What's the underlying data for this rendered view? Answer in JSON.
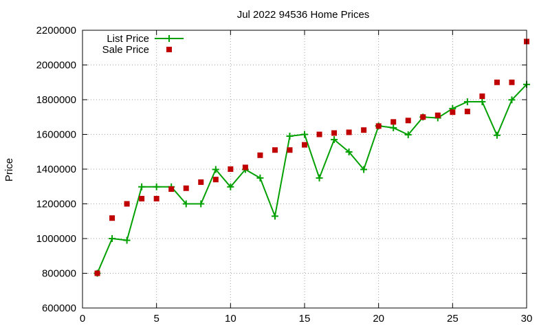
{
  "chart_data": {
    "type": "line",
    "title": "Jul 2022 94536 Home Prices",
    "xlabel": "",
    "ylabel": "Price",
    "xlim": [
      0,
      30
    ],
    "ylim": [
      600000,
      2200000
    ],
    "xticks": [
      0,
      5,
      10,
      15,
      20,
      25,
      30
    ],
    "yticks": [
      600000,
      800000,
      1000000,
      1200000,
      1400000,
      1600000,
      1800000,
      2000000,
      2200000
    ],
    "grid": true,
    "legend_position": "top-left",
    "series": [
      {
        "name": "List Price",
        "style": "lines+crosses",
        "color": "#00a000",
        "x": [
          1,
          2,
          3,
          4,
          5,
          6,
          7,
          8,
          9,
          10,
          11,
          12,
          13,
          14,
          15,
          16,
          17,
          18,
          19,
          20,
          21,
          22,
          23,
          24,
          25,
          26,
          27,
          28,
          29,
          30
        ],
        "y": [
          800000,
          1000000,
          990000,
          1298000,
          1298000,
          1298000,
          1200000,
          1200000,
          1398000,
          1298000,
          1398000,
          1349000,
          1129000,
          1590000,
          1600000,
          1349000,
          1570000,
          1499000,
          1398000,
          1649000,
          1638000,
          1598000,
          1700000,
          1695000,
          1749000,
          1788000,
          1788000,
          1595000,
          1799000,
          1888000
        ]
      },
      {
        "name": "Sale Price",
        "style": "squares",
        "color": "#c00000",
        "x": [
          1,
          2,
          3,
          4,
          5,
          6,
          7,
          8,
          9,
          10,
          11,
          12,
          13,
          14,
          15,
          16,
          17,
          18,
          19,
          20,
          21,
          22,
          23,
          24,
          25,
          26,
          27,
          28,
          29,
          30
        ],
        "y": [
          800000,
          1118000,
          1200000,
          1230000,
          1230000,
          1285000,
          1290000,
          1325000,
          1340000,
          1400000,
          1410000,
          1480000,
          1510000,
          1510000,
          1540000,
          1600000,
          1608000,
          1612000,
          1625000,
          1648000,
          1672000,
          1680000,
          1700000,
          1710000,
          1728000,
          1732000,
          1820000,
          1900000,
          1900000,
          2135000
        ]
      }
    ]
  }
}
